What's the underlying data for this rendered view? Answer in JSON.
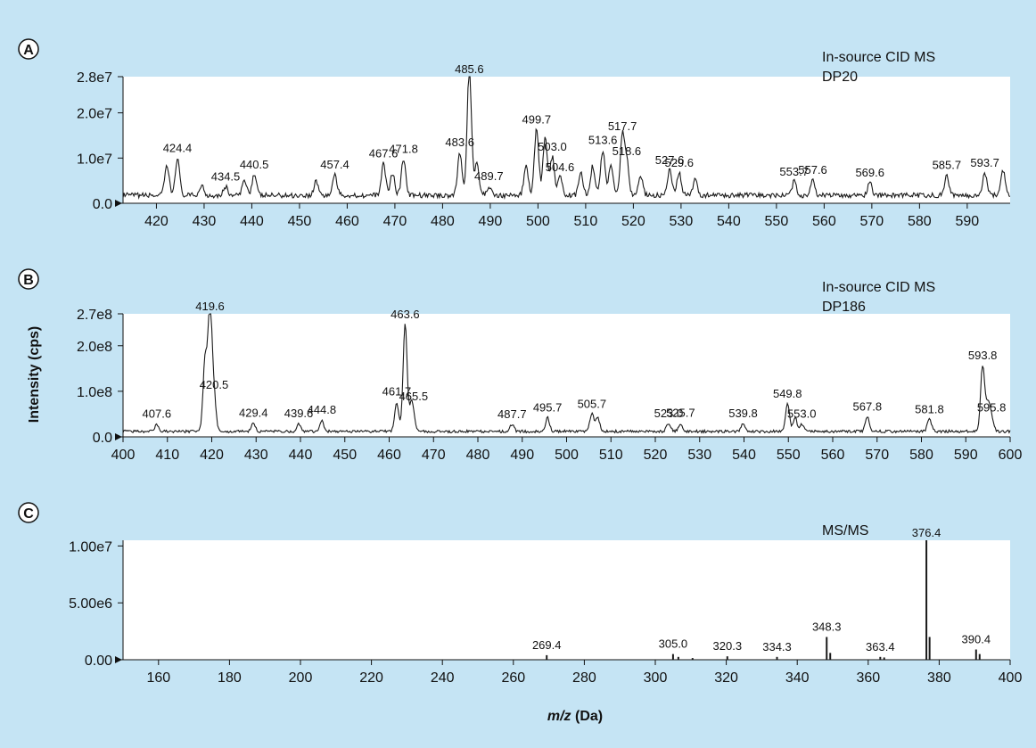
{
  "colors": {
    "background": "#c5e4f4",
    "plot_area": "#ffffff",
    "trace": "#1a1a1a"
  },
  "ylabel": "Intensity (cps)",
  "xlabel_italic": "m/z",
  "xlabel_rest": " (Da)",
  "chart_data": [
    {
      "type": "line",
      "panel": "A",
      "corner_text": [
        "In-source CID MS",
        "DP20"
      ],
      "xlim": [
        413,
        599
      ],
      "ylim": [
        0,
        28000000
      ],
      "x_ticks": [
        420,
        430,
        440,
        450,
        460,
        470,
        480,
        490,
        500,
        510,
        520,
        530,
        540,
        550,
        560,
        570,
        580,
        590
      ],
      "y_ticks": [
        {
          "v": 0,
          "label": "0.0"
        },
        {
          "v": 10000000,
          "label": "1.0e7"
        },
        {
          "v": 20000000,
          "label": "2.0e7"
        },
        {
          "v": 28000000,
          "label": "2.8e7"
        }
      ],
      "baseline": 1200000,
      "noise": 1100000,
      "peaks": [
        {
          "x": 422.2,
          "y": 6500000
        },
        {
          "x": 424.4,
          "y": 8200000
        },
        {
          "x": 429.5,
          "y": 2200000
        },
        {
          "x": 434.5,
          "y": 1900000
        },
        {
          "x": 438.5,
          "y": 3500000
        },
        {
          "x": 440.5,
          "y": 4600000
        },
        {
          "x": 453.5,
          "y": 3200000
        },
        {
          "x": 457.4,
          "y": 4600000
        },
        {
          "x": 467.6,
          "y": 7000000
        },
        {
          "x": 469.5,
          "y": 5000000
        },
        {
          "x": 471.8,
          "y": 8000000
        },
        {
          "x": 483.6,
          "y": 9500000
        },
        {
          "x": 485.6,
          "y": 28000000
        },
        {
          "x": 487.2,
          "y": 7000000
        },
        {
          "x": 489.7,
          "y": 2000000
        },
        {
          "x": 497.5,
          "y": 6500000
        },
        {
          "x": 499.7,
          "y": 14500000
        },
        {
          "x": 501.5,
          "y": 12500000
        },
        {
          "x": 503.0,
          "y": 8500000
        },
        {
          "x": 504.6,
          "y": 4000000
        },
        {
          "x": 509.0,
          "y": 5000000
        },
        {
          "x": 511.5,
          "y": 6500000
        },
        {
          "x": 513.6,
          "y": 10000000
        },
        {
          "x": 515.3,
          "y": 7000000
        },
        {
          "x": 517.7,
          "y": 13000000
        },
        {
          "x": 518.6,
          "y": 7500000
        },
        {
          "x": 521.5,
          "y": 4500000
        },
        {
          "x": 527.6,
          "y": 5500000
        },
        {
          "x": 529.6,
          "y": 5000000
        },
        {
          "x": 533.0,
          "y": 3500000
        },
        {
          "x": 553.7,
          "y": 3000000
        },
        {
          "x": 557.6,
          "y": 3400000
        },
        {
          "x": 569.6,
          "y": 2800000
        },
        {
          "x": 585.7,
          "y": 4500000
        },
        {
          "x": 593.7,
          "y": 5000000
        },
        {
          "x": 597.5,
          "y": 5500000
        }
      ],
      "peak_labels": [
        {
          "x": 424.4,
          "text": "424.4"
        },
        {
          "x": 434.5,
          "text": "434.5"
        },
        {
          "x": 440.5,
          "text": "440.5"
        },
        {
          "x": 457.4,
          "text": "457.4"
        },
        {
          "x": 467.6,
          "text": "467.6"
        },
        {
          "x": 471.8,
          "text": "471.8"
        },
        {
          "x": 483.6,
          "text": "483.6"
        },
        {
          "x": 485.6,
          "text": "485.6"
        },
        {
          "x": 489.7,
          "text": "489.7"
        },
        {
          "x": 499.7,
          "text": "499.7"
        },
        {
          "x": 503.0,
          "text": "503.0"
        },
        {
          "x": 504.6,
          "text": "504.6"
        },
        {
          "x": 513.6,
          "text": "513.6"
        },
        {
          "x": 517.7,
          "text": "517.7"
        },
        {
          "x": 518.6,
          "text": "518.6"
        },
        {
          "x": 527.6,
          "text": "527.6"
        },
        {
          "x": 529.6,
          "text": "529.6"
        },
        {
          "x": 553.7,
          "text": "553.7"
        },
        {
          "x": 557.6,
          "text": "557.6"
        },
        {
          "x": 569.6,
          "text": "569.6"
        },
        {
          "x": 585.7,
          "text": "585.7"
        },
        {
          "x": 593.7,
          "text": "593.7"
        }
      ]
    },
    {
      "type": "line",
      "panel": "B",
      "corner_text": [
        "In-source CID MS",
        "DP186"
      ],
      "xlim": [
        400,
        600
      ],
      "ylim": [
        0,
        270000000
      ],
      "x_ticks": [
        400,
        410,
        420,
        430,
        440,
        450,
        460,
        470,
        480,
        490,
        500,
        510,
        520,
        530,
        540,
        550,
        560,
        570,
        580,
        590,
        600
      ],
      "y_ticks": [
        {
          "v": 0,
          "label": "0.0"
        },
        {
          "v": 100000000,
          "label": "1.0e8"
        },
        {
          "v": 200000000,
          "label": "2.0e8"
        },
        {
          "v": 270000000,
          "label": "2.7e8"
        }
      ],
      "baseline": 9000000,
      "noise": 6000000,
      "peaks": [
        {
          "x": 407.6,
          "y": 16000000
        },
        {
          "x": 418.5,
          "y": 160000000
        },
        {
          "x": 419.6,
          "y": 270000000
        },
        {
          "x": 420.5,
          "y": 80000000
        },
        {
          "x": 429.4,
          "y": 18000000
        },
        {
          "x": 439.6,
          "y": 17000000
        },
        {
          "x": 444.8,
          "y": 25000000
        },
        {
          "x": 461.7,
          "y": 65000000
        },
        {
          "x": 463.6,
          "y": 235000000
        },
        {
          "x": 465.0,
          "y": 55000000
        },
        {
          "x": 465.5,
          "y": 20000000
        },
        {
          "x": 487.7,
          "y": 15000000
        },
        {
          "x": 495.7,
          "y": 30000000
        },
        {
          "x": 505.7,
          "y": 38000000
        },
        {
          "x": 507.0,
          "y": 30000000
        },
        {
          "x": 523.0,
          "y": 17000000
        },
        {
          "x": 525.7,
          "y": 18000000
        },
        {
          "x": 539.8,
          "y": 17000000
        },
        {
          "x": 549.8,
          "y": 60000000
        },
        {
          "x": 551.5,
          "y": 30000000
        },
        {
          "x": 553.0,
          "y": 16000000
        },
        {
          "x": 567.8,
          "y": 32000000
        },
        {
          "x": 581.8,
          "y": 26000000
        },
        {
          "x": 593.8,
          "y": 145000000
        },
        {
          "x": 595.0,
          "y": 60000000
        },
        {
          "x": 595.8,
          "y": 30000000
        }
      ],
      "peak_labels": [
        {
          "x": 407.6,
          "text": "407.6"
        },
        {
          "x": 419.6,
          "text": "419.6"
        },
        {
          "x": 420.5,
          "text": "420.5"
        },
        {
          "x": 429.4,
          "text": "429.4"
        },
        {
          "x": 439.6,
          "text": "439.6"
        },
        {
          "x": 444.8,
          "text": "444.8"
        },
        {
          "x": 461.7,
          "text": "461.7"
        },
        {
          "x": 463.6,
          "text": "463.6"
        },
        {
          "x": 465.5,
          "text": "465.5"
        },
        {
          "x": 487.7,
          "text": "487.7"
        },
        {
          "x": 495.7,
          "text": "495.7"
        },
        {
          "x": 505.7,
          "text": "505.7"
        },
        {
          "x": 523.0,
          "text": "523.0"
        },
        {
          "x": 525.7,
          "text": "525.7"
        },
        {
          "x": 539.8,
          "text": "539.8"
        },
        {
          "x": 549.8,
          "text": "549.8"
        },
        {
          "x": 553.0,
          "text": "553.0"
        },
        {
          "x": 567.8,
          "text": "567.8"
        },
        {
          "x": 581.8,
          "text": "581.8"
        },
        {
          "x": 593.8,
          "text": "593.8"
        },
        {
          "x": 595.8,
          "text": "595.8"
        }
      ]
    },
    {
      "type": "bar",
      "panel": "C",
      "corner_text": [
        "MS/MS"
      ],
      "xlim": [
        150,
        400
      ],
      "ylim": [
        0,
        10500000
      ],
      "x_ticks": [
        160,
        180,
        200,
        220,
        240,
        260,
        280,
        300,
        320,
        340,
        360,
        380,
        400
      ],
      "y_ticks": [
        {
          "v": 0,
          "label": "0.00"
        },
        {
          "v": 5000000,
          "label": "5.00e6"
        },
        {
          "v": 10000000,
          "label": "1.00e7"
        }
      ],
      "peaks": [
        {
          "x": 269.4,
          "y": 400000
        },
        {
          "x": 305.0,
          "y": 500000
        },
        {
          "x": 306.5,
          "y": 250000
        },
        {
          "x": 310.5,
          "y": 150000
        },
        {
          "x": 320.3,
          "y": 300000
        },
        {
          "x": 334.3,
          "y": 250000
        },
        {
          "x": 348.3,
          "y": 2000000
        },
        {
          "x": 349.3,
          "y": 600000
        },
        {
          "x": 363.4,
          "y": 250000
        },
        {
          "x": 364.5,
          "y": 200000
        },
        {
          "x": 376.4,
          "y": 10500000
        },
        {
          "x": 377.3,
          "y": 2000000
        },
        {
          "x": 390.4,
          "y": 900000
        },
        {
          "x": 391.4,
          "y": 500000
        }
      ],
      "peak_labels": [
        {
          "x": 269.4,
          "text": "269.4"
        },
        {
          "x": 305.0,
          "text": "305.0"
        },
        {
          "x": 320.3,
          "text": "320.3"
        },
        {
          "x": 334.3,
          "text": "334.3"
        },
        {
          "x": 348.3,
          "text": "348.3"
        },
        {
          "x": 363.4,
          "text": "363.4"
        },
        {
          "x": 376.4,
          "text": "376.4"
        },
        {
          "x": 390.4,
          "text": "390.4"
        }
      ]
    }
  ]
}
